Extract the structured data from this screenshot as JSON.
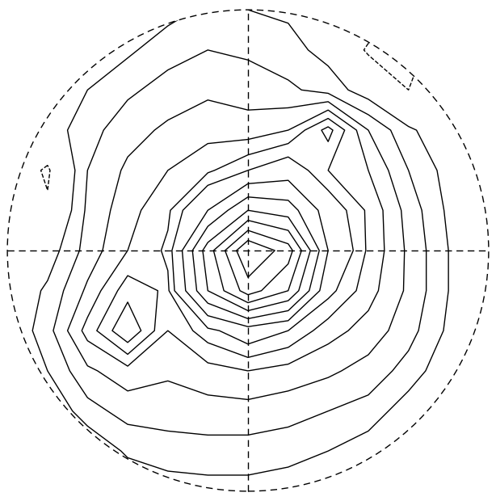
{
  "chart_data": {
    "type": "contour",
    "tick_labels": false,
    "color": "#000000",
    "xlim": [
      -1,
      1
    ],
    "ylim": [
      -1,
      1
    ],
    "x": [
      -1,
      -0.833,
      -0.667,
      -0.5,
      -0.333,
      -0.167,
      0,
      0.167,
      0.333,
      0.5,
      0.667,
      0.833,
      1
    ],
    "y": [
      1,
      0.833,
      0.667,
      0.5,
      0.333,
      0.167,
      0,
      -0.167,
      -0.333,
      -0.5,
      -0.667,
      -0.833,
      -1
    ],
    "z": [
      [
        0,
        0,
        0,
        0,
        0.3,
        0.6,
        0.5,
        0.4,
        0.2,
        0,
        0,
        0,
        0
      ],
      [
        0,
        0,
        0,
        0.4,
        0.8,
        1.0,
        0.9,
        0.7,
        0.3,
        -0.6,
        -0.8,
        0,
        0
      ],
      [
        0,
        0,
        0.5,
        0.9,
        1.2,
        1.4,
        1.3,
        1.1,
        0.8,
        0.2,
        -0.5,
        -0.3,
        0
      ],
      [
        0,
        0.2,
        0.8,
        1.3,
        1.6,
        1.8,
        1.7,
        2.0,
        3.2,
        1.5,
        0.6,
        0.1,
        0
      ],
      [
        0,
        -0.6,
        1.0,
        1.6,
        2.0,
        2.4,
        3.0,
        3.5,
        2.5,
        2.0,
        1.0,
        0.3,
        0
      ],
      [
        0,
        -0.4,
        1.1,
        1.8,
        2.4,
        4.0,
        6.0,
        5.5,
        3.5,
        2.4,
        1.3,
        0.4,
        0
      ],
      [
        0,
        0.2,
        1.2,
        2.0,
        2.6,
        6.5,
        10.0,
        8.5,
        4.0,
        2.4,
        1.4,
        0.5,
        0
      ],
      [
        0,
        0.6,
        1.6,
        2.8,
        2.4,
        6.0,
        8.5,
        7.0,
        3.2,
        2.2,
        1.4,
        0.5,
        0
      ],
      [
        0,
        0.8,
        2.2,
        3.5,
        2.0,
        2.8,
        3.5,
        3.0,
        2.2,
        1.8,
        1.2,
        0.4,
        0
      ],
      [
        0,
        0.5,
        1.4,
        1.8,
        1.6,
        1.8,
        2.0,
        1.8,
        1.6,
        1.3,
        0.8,
        0.1,
        0
      ],
      [
        0,
        0,
        0.8,
        1.2,
        1.2,
        1.3,
        1.3,
        1.2,
        1.0,
        0.8,
        0.2,
        -0.5,
        0
      ],
      [
        0,
        0,
        0,
        0.6,
        0.8,
        0.8,
        0.8,
        0.7,
        0.5,
        0.2,
        -0.3,
        0,
        0
      ],
      [
        0,
        0,
        0,
        0,
        0.2,
        0.3,
        0.3,
        0.2,
        0,
        0,
        0,
        0,
        0
      ]
    ],
    "levels": [
      -0.5,
      0.5,
      1,
      1.5,
      2,
      2.5,
      3,
      4,
      5,
      6,
      7,
      8,
      9
    ]
  }
}
